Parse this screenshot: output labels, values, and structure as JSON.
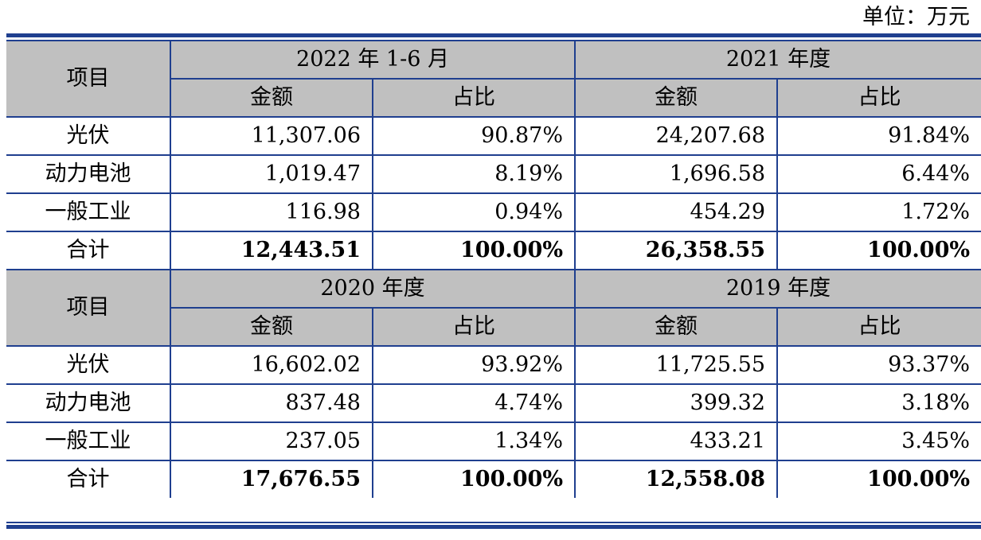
{
  "unit_label": "单位：万元",
  "item_header": "项目",
  "amount_header": "金额",
  "ratio_header": "占比",
  "blocks": [
    {
      "periods": [
        "2022 年 1-6 月",
        "2021 年度"
      ],
      "rows": [
        {
          "label": "光伏",
          "values": [
            "11,307.06",
            "90.87%",
            "24,207.68",
            "91.84%"
          ]
        },
        {
          "label": "动力电池",
          "values": [
            "1,019.47",
            "8.19%",
            "1,696.58",
            "6.44%"
          ]
        },
        {
          "label": "一般工业",
          "values": [
            "116.98",
            "0.94%",
            "454.29",
            "1.72%"
          ]
        },
        {
          "label": "合计",
          "values": [
            "12,443.51",
            "100.00%",
            "26,358.55",
            "100.00%"
          ]
        }
      ]
    },
    {
      "periods": [
        "2020 年度",
        "2019 年度"
      ],
      "rows": [
        {
          "label": "光伏",
          "values": [
            "16,602.02",
            "93.92%",
            "11,725.55",
            "93.37%"
          ]
        },
        {
          "label": "动力电池",
          "values": [
            "837.48",
            "4.74%",
            "399.32",
            "3.18%"
          ]
        },
        {
          "label": "一般工业",
          "values": [
            "237.05",
            "1.34%",
            "433.21",
            "3.45%"
          ]
        },
        {
          "label": "合计",
          "values": [
            "17,676.55",
            "100.00%",
            "12,558.08",
            "100.00%"
          ]
        }
      ]
    }
  ]
}
